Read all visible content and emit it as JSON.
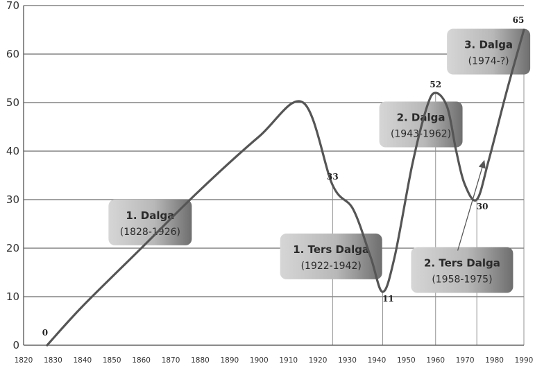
{
  "chart_data": {
    "type": "line",
    "xlim": [
      1820,
      1990
    ],
    "ylim": [
      0,
      70
    ],
    "x_ticks": [
      1820,
      1830,
      1840,
      1850,
      1860,
      1870,
      1880,
      1890,
      1900,
      1910,
      1920,
      1930,
      1940,
      1950,
      1960,
      1970,
      1980,
      1990
    ],
    "y_ticks": [
      0,
      10,
      20,
      30,
      40,
      50,
      60,
      70
    ],
    "grid": "horizontal",
    "line_color": "#555555",
    "series": [
      {
        "x": [
          1828,
          1840,
          1860,
          1880,
          1900,
          1915,
          1925,
          1932,
          1938,
          1942,
          1946,
          1952,
          1957,
          1960,
          1964,
          1967,
          1970,
          1974,
          1978,
          1984,
          1990
        ],
        "values": [
          0,
          8,
          20,
          32,
          43,
          50,
          33,
          28,
          18,
          11,
          18,
          37,
          49,
          52,
          49,
          40,
          33,
          30,
          38,
          52,
          65
        ]
      }
    ],
    "point_labels": [
      {
        "x": 1828,
        "y": 0,
        "text": "0"
      },
      {
        "x": 1925,
        "y": 33,
        "text": "33"
      },
      {
        "x": 1942,
        "y": 11,
        "text": "11"
      },
      {
        "x": 1960,
        "y": 52,
        "text": "52"
      },
      {
        "x": 1974,
        "y": 30,
        "text": "30"
      },
      {
        "x": 1990,
        "y": 65,
        "text": "65"
      }
    ],
    "drop_lines": [
      1925,
      1942,
      1960,
      1974,
      1990
    ],
    "annotations": [
      {
        "title": "1. Dalga",
        "years": "(1828-1926)",
        "x": 1863,
        "y": 25.3
      },
      {
        "title": "1. Ters Dalga",
        "years": "(1922-1942)",
        "x": 1924.5,
        "y": 18.3
      },
      {
        "title": "2. Dalga",
        "years": "(1943-1962)",
        "x": 1955,
        "y": 45.5
      },
      {
        "title": "3. Dalga",
        "years": "(1974-?)",
        "x": 1978,
        "y": 60.5
      },
      {
        "title": "2. Ters Dalga",
        "years": "(1958-1975)",
        "x": 1969,
        "y": 15.5
      }
    ],
    "arrow": {
      "from": [
        1967.5,
        19.5
      ],
      "to": [
        1976.5,
        38
      ]
    }
  }
}
